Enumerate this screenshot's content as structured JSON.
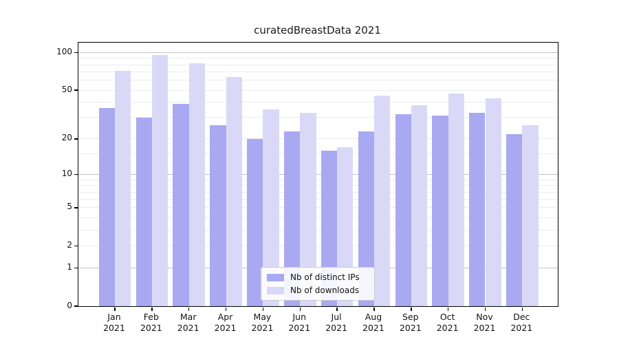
{
  "title": "curatedBreastData 2021",
  "legend": {
    "items": [
      {
        "label": "Nb of distinct IPs",
        "color": "#a9a9f1"
      },
      {
        "label": "Nb of downloads",
        "color": "#d9d9f7"
      }
    ]
  },
  "y_axis_tick_labels": [
    "100",
    "50",
    "20",
    "10",
    "5",
    "2",
    "1",
    "0"
  ],
  "chart_data": {
    "type": "bar",
    "title": "curatedBreastData 2021",
    "categories": [
      "Jan",
      "Feb",
      "Mar",
      "Apr",
      "May",
      "Jun",
      "Jul",
      "Aug",
      "Sep",
      "Oct",
      "Nov",
      "Dec"
    ],
    "category_year": "2021",
    "series": [
      {
        "name": "Nb of distinct IPs",
        "color": "#a9a9f1",
        "values": [
          36,
          30,
          39,
          26,
          20,
          23,
          16,
          23,
          32,
          31,
          33,
          22
        ]
      },
      {
        "name": "Nb of downloads",
        "color": "#d9d9f7",
        "values": [
          72,
          96,
          82,
          64,
          35,
          33,
          17,
          45,
          38,
          47,
          43,
          26
        ]
      }
    ],
    "xlabel": "",
    "ylabel": "",
    "yscale": "log1p",
    "ylim": [
      0,
      120
    ],
    "y_tick_values": [
      100,
      50,
      20,
      10,
      5,
      2,
      1,
      0
    ],
    "y_major_gridlines": [
      1,
      10,
      100
    ],
    "y_minor_gridlines": [
      2,
      3,
      4,
      5,
      6,
      7,
      8,
      9,
      15,
      20,
      30,
      40,
      50,
      60,
      70,
      80,
      90
    ],
    "grid": true,
    "legend_position": "lower center",
    "colors": {
      "major_grid": "#c2c2c2",
      "minor_grid": "#ececec",
      "axis": "#000000",
      "background": "#ffffff",
      "text": "#1a1a1a"
    }
  }
}
